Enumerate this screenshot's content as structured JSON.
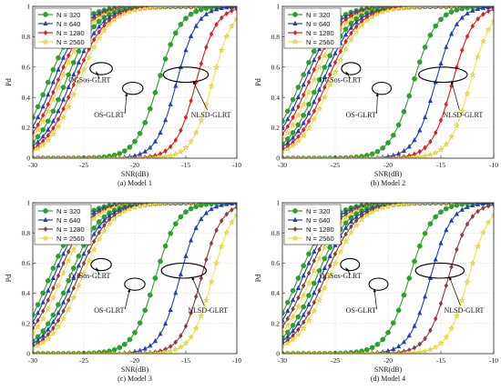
{
  "chart_data": [
    {
      "type": "line",
      "caption": "(a) Model 1",
      "xlabel": "SNR(dB)",
      "ylabel": "Pd",
      "xlim": [
        -30,
        -10
      ],
      "ylim": [
        0,
        1
      ],
      "xticks": [
        -30,
        -25,
        -20,
        -15,
        -10
      ],
      "yticks": [
        0,
        0.2,
        0.4,
        0.6,
        0.8,
        1
      ],
      "grid": true,
      "legend": {
        "placement": "top-left",
        "entries": [
          "N = 320",
          "N = 640",
          "N = 1280",
          "N = 2560"
        ]
      },
      "annotations": [
        {
          "text": "OGSos-GLRT",
          "ellipse": {
            "cx": -23.3,
            "cy": 0.59,
            "rx": 1.1,
            "ry": 0.04
          },
          "label_at": [
            -26.5,
            0.5
          ],
          "arrow_to": [
            -23.8,
            0.57
          ]
        },
        {
          "text": "OS-GLRT",
          "ellipse": {
            "cx": -20.2,
            "cy": 0.46,
            "rx": 1.0,
            "ry": 0.04
          },
          "label_at": [
            -24.0,
            0.27
          ],
          "arrow_to": [
            -20.8,
            0.43
          ]
        },
        {
          "text": "NLSD-GLRT",
          "ellipse": {
            "cx": -15.0,
            "cy": 0.55,
            "rx": 2.2,
            "ry": 0.05
          },
          "label_at": [
            -14.5,
            0.27
          ],
          "arrow_to": [
            -14.3,
            0.51
          ]
        }
      ],
      "series": [
        {
          "name": "N = 320",
          "group": "OGSos-GLRT",
          "color": "#2ca02c",
          "marker": "circle",
          "x0": -28.5,
          "w": 1.5
        },
        {
          "name": "N = 640",
          "group": "OGSos-GLRT",
          "color": "#1f3fbf",
          "marker": "triangle",
          "x0": -28.0,
          "w": 1.5
        },
        {
          "name": "N = 1280",
          "group": "OGSos-GLRT",
          "color": "#e41a1c",
          "marker": "diamond",
          "x0": -27.6,
          "w": 1.5
        },
        {
          "name": "N = 2560",
          "group": "OGSos-GLRT",
          "color": "#f5e342",
          "marker": "star",
          "x0": -27.3,
          "w": 1.5
        },
        {
          "name": "N = 320",
          "group": "OS-GLRT",
          "color": "#2ca02c",
          "marker": "circle",
          "x0": -26.8,
          "w": 1.5
        },
        {
          "name": "N = 640",
          "group": "OS-GLRT",
          "color": "#1f3fbf",
          "marker": "triangle",
          "x0": -26.3,
          "w": 1.5
        },
        {
          "name": "N = 1280",
          "group": "OS-GLRT",
          "color": "#e41a1c",
          "marker": "diamond",
          "x0": -25.9,
          "w": 1.5
        },
        {
          "name": "N = 2560",
          "group": "OS-GLRT",
          "color": "#f5e342",
          "marker": "star",
          "x0": -25.5,
          "w": 1.5
        },
        {
          "name": "N = 320",
          "group": "NLSD-GLRT",
          "color": "#2ca02c",
          "marker": "circle",
          "x0": -17.7,
          "w": 1.1
        },
        {
          "name": "N = 640",
          "group": "NLSD-GLRT",
          "color": "#1f3fbf",
          "marker": "triangle",
          "x0": -15.9,
          "w": 1.0
        },
        {
          "name": "N = 1280",
          "group": "NLSD-GLRT",
          "color": "#e41a1c",
          "marker": "diamond",
          "x0": -14.0,
          "w": 1.0
        },
        {
          "name": "N = 2560",
          "group": "NLSD-GLRT",
          "color": "#f5e342",
          "marker": "star",
          "x0": -12.4,
          "w": 1.0
        }
      ]
    },
    {
      "type": "line",
      "caption": "(b) Model 2",
      "xlabel": "SNR(dB)",
      "ylabel": "Pd",
      "xlim": [
        -30,
        -10
      ],
      "ylim": [
        0,
        1
      ],
      "xticks": [
        -30,
        -25,
        -20,
        -15,
        -10
      ],
      "yticks": [
        0,
        0.2,
        0.4,
        0.6,
        0.8,
        1
      ],
      "grid": true,
      "legend": {
        "placement": "top-left",
        "entries": [
          "N = 320",
          "N = 640",
          "N = 1280",
          "N = 2560"
        ]
      },
      "annotations": [
        {
          "text": "OGSos-GLRT",
          "ellipse": {
            "cx": -23.5,
            "cy": 0.59,
            "rx": 0.9,
            "ry": 0.04
          },
          "label_at": [
            -26.5,
            0.5
          ],
          "arrow_to": [
            -24.0,
            0.57
          ]
        },
        {
          "text": "OS-GLRT",
          "ellipse": {
            "cx": -20.6,
            "cy": 0.46,
            "rx": 0.9,
            "ry": 0.04
          },
          "label_at": [
            -24.0,
            0.27
          ],
          "arrow_to": [
            -21.0,
            0.43
          ]
        },
        {
          "text": "NLSD-GLRT",
          "ellipse": {
            "cx": -14.8,
            "cy": 0.55,
            "rx": 2.3,
            "ry": 0.05
          },
          "label_at": [
            -14.8,
            0.27
          ],
          "arrow_to": [
            -14.0,
            0.51
          ]
        }
      ],
      "series": [
        {
          "name": "N = 320",
          "group": "OGSos-GLRT",
          "color": "#2ca02c",
          "marker": "circle",
          "x0": -28.3,
          "w": 1.5
        },
        {
          "name": "N = 640",
          "group": "OGSos-GLRT",
          "color": "#1f3fbf",
          "marker": "triangle",
          "x0": -27.9,
          "w": 1.5
        },
        {
          "name": "N = 1280",
          "group": "OGSos-GLRT",
          "color": "#e41a1c",
          "marker": "diamond",
          "x0": -27.5,
          "w": 1.5
        },
        {
          "name": "N = 2560",
          "group": "OGSos-GLRT",
          "color": "#f5e342",
          "marker": "star",
          "x0": -27.1,
          "w": 1.5
        },
        {
          "name": "N = 320",
          "group": "OS-GLRT",
          "color": "#2ca02c",
          "marker": "circle",
          "x0": -26.6,
          "w": 1.5
        },
        {
          "name": "N = 640",
          "group": "OS-GLRT",
          "color": "#1f3fbf",
          "marker": "triangle",
          "x0": -26.2,
          "w": 1.5
        },
        {
          "name": "N = 1280",
          "group": "OS-GLRT",
          "color": "#e41a1c",
          "marker": "diamond",
          "x0": -25.8,
          "w": 1.5
        },
        {
          "name": "N = 2560",
          "group": "OS-GLRT",
          "color": "#f5e342",
          "marker": "star",
          "x0": -25.4,
          "w": 1.5
        },
        {
          "name": "N = 320",
          "group": "NLSD-GLRT",
          "color": "#2ca02c",
          "marker": "circle",
          "x0": -17.6,
          "w": 1.1
        },
        {
          "name": "N = 640",
          "group": "NLSD-GLRT",
          "color": "#1f3fbf",
          "marker": "triangle",
          "x0": -15.5,
          "w": 1.0
        },
        {
          "name": "N = 1280",
          "group": "NLSD-GLRT",
          "color": "#e41a1c",
          "marker": "diamond",
          "x0": -13.9,
          "w": 1.0
        },
        {
          "name": "N = 2560",
          "group": "NLSD-GLRT",
          "color": "#f5e342",
          "marker": "star",
          "x0": -12.2,
          "w": 1.0
        }
      ]
    },
    {
      "type": "line",
      "caption": "(c) Model 3",
      "xlabel": "SNR(dB)",
      "ylabel": "Pd",
      "xlim": [
        -30,
        -10
      ],
      "ylim": [
        0,
        1
      ],
      "xticks": [
        -30,
        -25,
        -20,
        -15,
        -10
      ],
      "yticks": [
        0,
        0.2,
        0.4,
        0.6,
        0.8,
        1
      ],
      "grid": true,
      "legend": {
        "placement": "top-left",
        "entries": [
          "N = 320",
          "N = 640",
          "N = 1280",
          "N = 2560"
        ]
      },
      "annotations": [
        {
          "text": "OGSos-GLRT",
          "ellipse": {
            "cx": -23.3,
            "cy": 0.59,
            "rx": 1.0,
            "ry": 0.04
          },
          "label_at": [
            -26.5,
            0.5
          ],
          "arrow_to": [
            -23.8,
            0.57
          ]
        },
        {
          "text": "OS-GLRT",
          "ellipse": {
            "cx": -20.0,
            "cy": 0.46,
            "rx": 1.0,
            "ry": 0.04
          },
          "label_at": [
            -24.0,
            0.27
          ],
          "arrow_to": [
            -20.5,
            0.43
          ]
        },
        {
          "text": "NLSD-GLRT",
          "ellipse": {
            "cx": -15.2,
            "cy": 0.55,
            "rx": 2.2,
            "ry": 0.05
          },
          "label_at": [
            -14.8,
            0.27
          ],
          "arrow_to": [
            -14.4,
            0.51
          ]
        }
      ],
      "series": [
        {
          "name": "N = 320",
          "group": "OGSos-GLRT",
          "color": "#2ca02c",
          "marker": "circle",
          "x0": -28.4,
          "w": 1.5
        },
        {
          "name": "N = 640",
          "group": "OGSos-GLRT",
          "color": "#1f3fbf",
          "marker": "triangle",
          "x0": -28.0,
          "w": 1.5
        },
        {
          "name": "N = 1280",
          "group": "OGSos-GLRT",
          "color": "#8b3a3a",
          "marker": "diamond",
          "x0": -27.6,
          "w": 1.5
        },
        {
          "name": "N = 2560",
          "group": "OGSos-GLRT",
          "color": "#f5e342",
          "marker": "star",
          "x0": -27.2,
          "w": 1.5
        },
        {
          "name": "N = 320",
          "group": "OS-GLRT",
          "color": "#2ca02c",
          "marker": "circle",
          "x0": -26.4,
          "w": 1.5
        },
        {
          "name": "N = 640",
          "group": "OS-GLRT",
          "color": "#1f3fbf",
          "marker": "triangle",
          "x0": -26.0,
          "w": 1.5
        },
        {
          "name": "N = 1280",
          "group": "OS-GLRT",
          "color": "#8b3a3a",
          "marker": "diamond",
          "x0": -25.6,
          "w": 1.5
        },
        {
          "name": "N = 2560",
          "group": "OS-GLRT",
          "color": "#f5e342",
          "marker": "star",
          "x0": -25.2,
          "w": 1.5
        },
        {
          "name": "N = 320",
          "group": "NLSD-GLRT",
          "color": "#2ca02c",
          "marker": "circle",
          "x0": -18.0,
          "w": 1.1
        },
        {
          "name": "N = 640",
          "group": "NLSD-GLRT",
          "color": "#1f3fbf",
          "marker": "triangle",
          "x0": -15.6,
          "w": 1.0
        },
        {
          "name": "N = 1280",
          "group": "NLSD-GLRT",
          "color": "#8b3a3a",
          "marker": "diamond",
          "x0": -13.5,
          "w": 1.0
        },
        {
          "name": "N = 2560",
          "group": "NLSD-GLRT",
          "color": "#f5e342",
          "marker": "star",
          "x0": -12.4,
          "w": 1.0
        }
      ]
    },
    {
      "type": "line",
      "caption": "(d) Model 4",
      "xlabel": "SNR(dB)",
      "ylabel": "Pd",
      "xlim": [
        -30,
        -10
      ],
      "ylim": [
        0,
        1
      ],
      "xticks": [
        -30,
        -25,
        -20,
        -15,
        -10
      ],
      "yticks": [
        0,
        0.2,
        0.4,
        0.6,
        0.8,
        1
      ],
      "grid": true,
      "legend": {
        "placement": "top-left",
        "entries": [
          "N = 320",
          "N = 640",
          "N = 1280",
          "N = 2560"
        ]
      },
      "annotations": [
        {
          "text": "OGSos-GLRT",
          "ellipse": {
            "cx": -23.6,
            "cy": 0.59,
            "rx": 0.9,
            "ry": 0.04
          },
          "label_at": [
            -26.5,
            0.5
          ],
          "arrow_to": [
            -24.0,
            0.57
          ]
        },
        {
          "text": "OS-GLRT",
          "ellipse": {
            "cx": -20.9,
            "cy": 0.46,
            "rx": 0.9,
            "ry": 0.04
          },
          "label_at": [
            -24.0,
            0.27
          ],
          "arrow_to": [
            -21.3,
            0.43
          ]
        },
        {
          "text": "NLSD-GLRT",
          "ellipse": {
            "cx": -15.1,
            "cy": 0.55,
            "rx": 2.3,
            "ry": 0.05
          },
          "label_at": [
            -14.7,
            0.27
          ],
          "arrow_to": [
            -14.2,
            0.51
          ]
        }
      ],
      "series": [
        {
          "name": "N = 320",
          "group": "OGSos-GLRT",
          "color": "#2ca02c",
          "marker": "circle",
          "x0": -28.5,
          "w": 1.5
        },
        {
          "name": "N = 640",
          "group": "OGSos-GLRT",
          "color": "#1f3fbf",
          "marker": "triangle",
          "x0": -28.1,
          "w": 1.5
        },
        {
          "name": "N = 1280",
          "group": "OGSos-GLRT",
          "color": "#8b3a3a",
          "marker": "diamond",
          "x0": -27.7,
          "w": 1.5
        },
        {
          "name": "N = 2560",
          "group": "OGSos-GLRT",
          "color": "#f5e342",
          "marker": "star",
          "x0": -27.3,
          "w": 1.5
        },
        {
          "name": "N = 320",
          "group": "OS-GLRT",
          "color": "#2ca02c",
          "marker": "circle",
          "x0": -26.8,
          "w": 1.5
        },
        {
          "name": "N = 640",
          "group": "OS-GLRT",
          "color": "#1f3fbf",
          "marker": "triangle",
          "x0": -26.4,
          "w": 1.5
        },
        {
          "name": "N = 1280",
          "group": "OS-GLRT",
          "color": "#8b3a3a",
          "marker": "diamond",
          "x0": -26.0,
          "w": 1.5
        },
        {
          "name": "N = 2560",
          "group": "OS-GLRT",
          "color": "#f5e342",
          "marker": "star",
          "x0": -25.6,
          "w": 1.5
        },
        {
          "name": "N = 320",
          "group": "NLSD-GLRT",
          "color": "#2ca02c",
          "marker": "circle",
          "x0": -18.0,
          "w": 1.1
        },
        {
          "name": "N = 640",
          "group": "NLSD-GLRT",
          "color": "#1f3fbf",
          "marker": "triangle",
          "x0": -16.0,
          "w": 1.0
        },
        {
          "name": "N = 1280",
          "group": "NLSD-GLRT",
          "color": "#8b3a3a",
          "marker": "diamond",
          "x0": -14.3,
          "w": 1.0
        },
        {
          "name": "N = 2560",
          "group": "NLSD-GLRT",
          "color": "#f5e342",
          "marker": "star",
          "x0": -12.4,
          "w": 1.0
        }
      ]
    }
  ]
}
